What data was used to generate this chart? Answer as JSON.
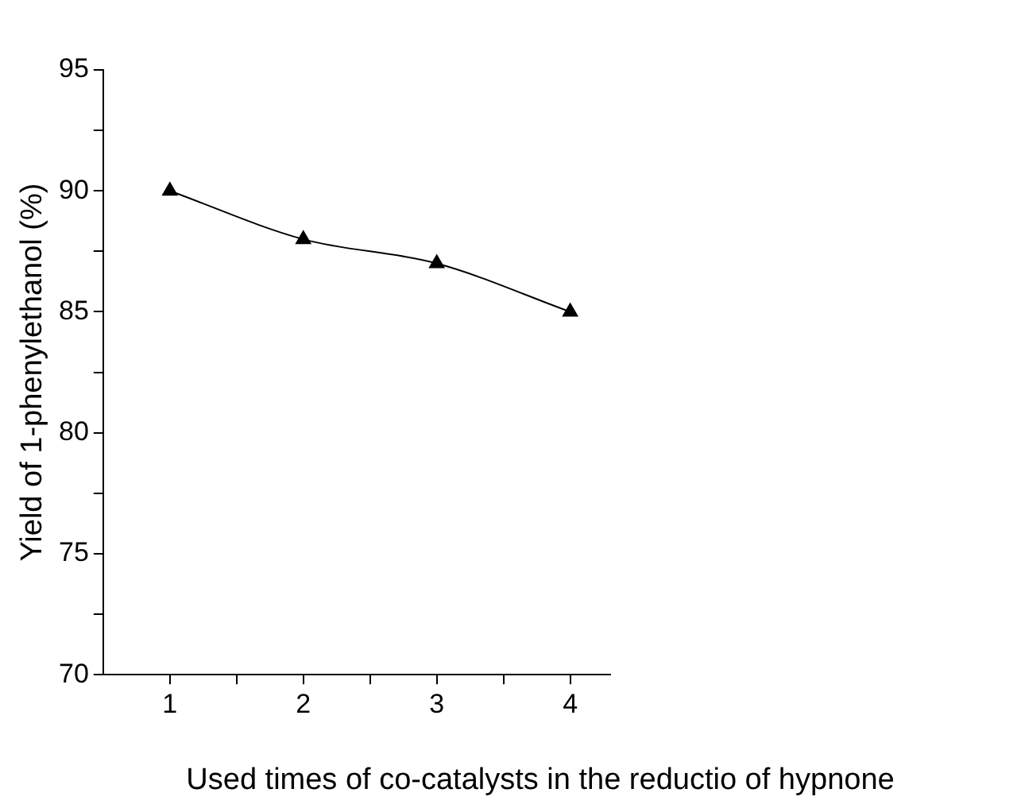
{
  "chart_data": {
    "type": "line",
    "xlabel": "Used times of co-catalysts in the reductio of hypnone",
    "ylabel": "Yield of 1-phenylethanol (%)",
    "x": [
      1,
      2,
      3,
      4
    ],
    "series": [
      {
        "color": "#000000",
        "values": [
          90,
          88,
          87,
          85
        ]
      }
    ],
    "xlim": [
      0.5,
      4.3
    ],
    "xticks": [
      1,
      {
        "value": 1.5,
        "label": null
      },
      2,
      {
        "value": 2.5,
        "label": null
      },
      3,
      {
        "value": 3.5,
        "label": null
      },
      4
    ],
    "ylim": [
      70,
      95
    ],
    "yticks": [
      70,
      {
        "value": 72.5,
        "label": null
      },
      75,
      {
        "value": 77.5,
        "label": null
      },
      80,
      {
        "value": 82.5,
        "label": null
      },
      85,
      {
        "value": 87.5,
        "label": null
      },
      90,
      {
        "value": 92.5,
        "label": null
      },
      95
    ],
    "marker": "triangle",
    "line_style": "solid",
    "grid": false,
    "legend": false
  }
}
